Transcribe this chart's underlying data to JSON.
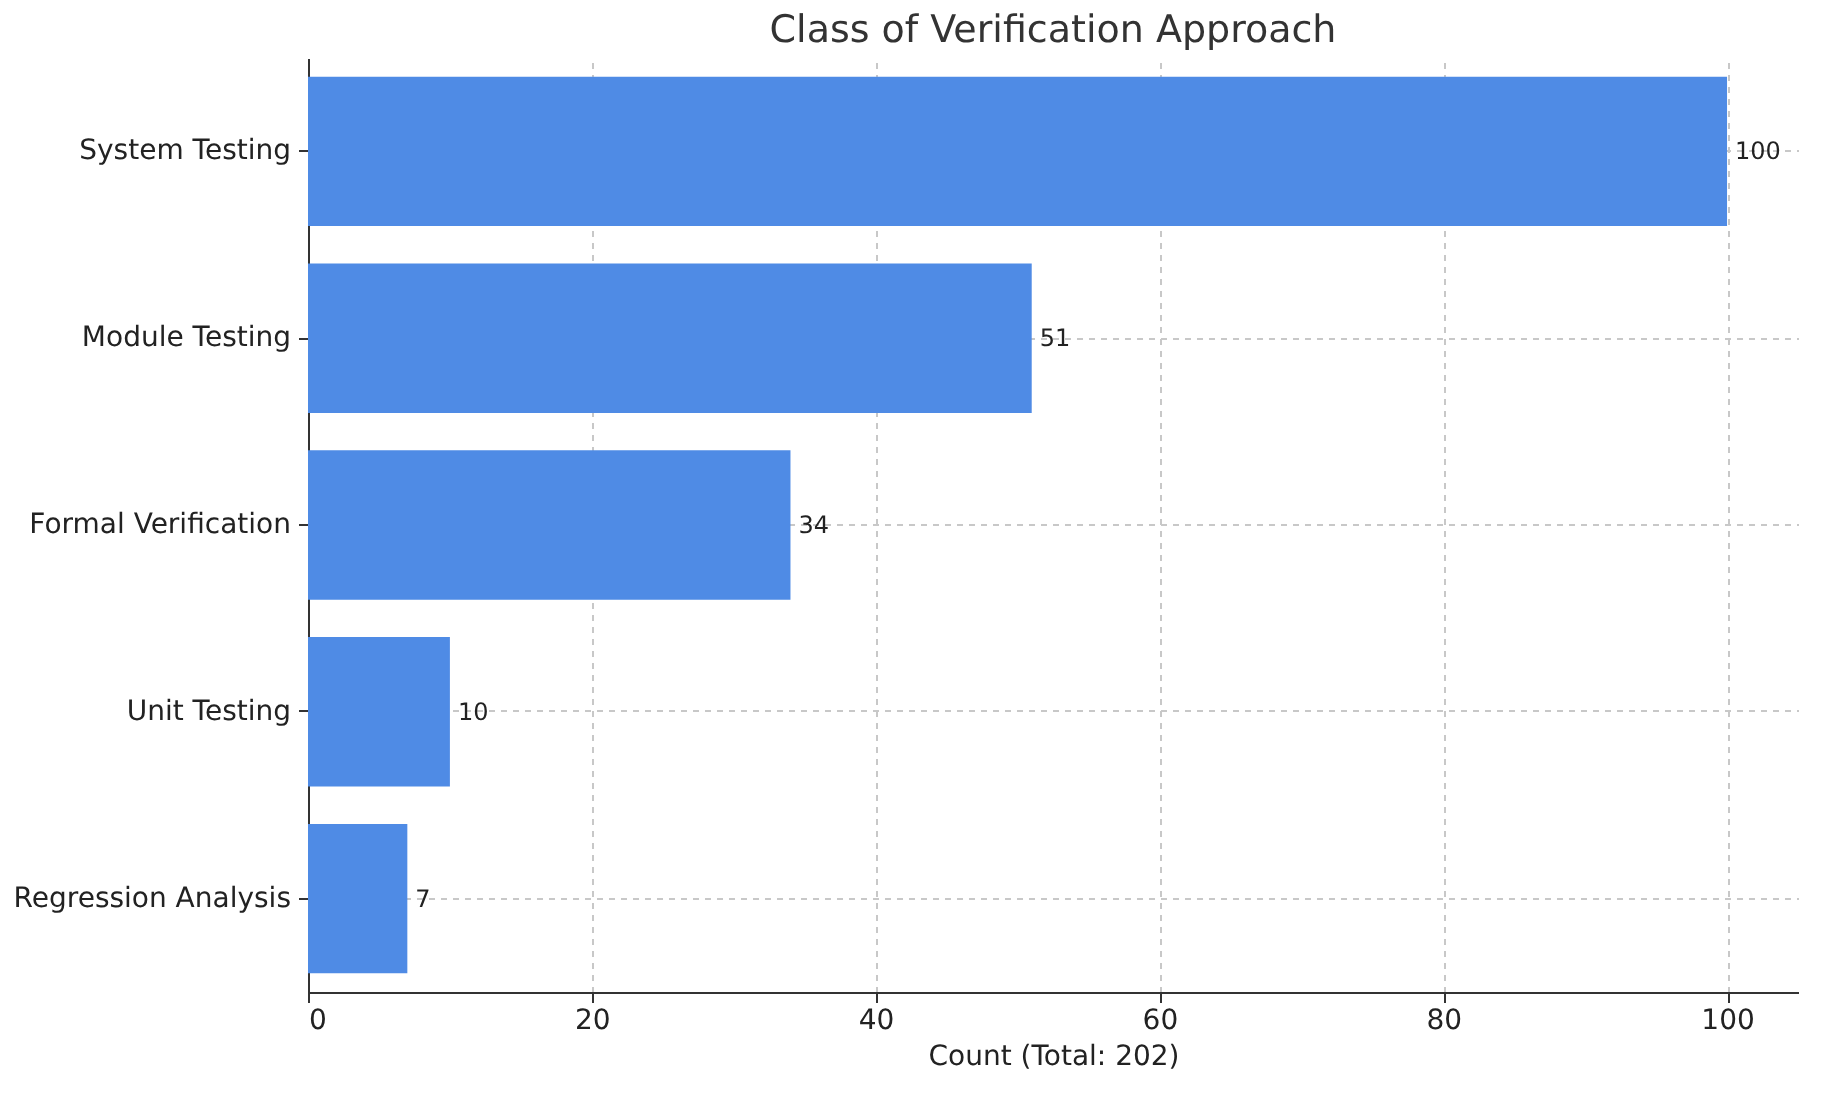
{
  "chart_data": {
    "type": "bar",
    "orientation": "horizontal",
    "title": "Class of Verification Approach",
    "xlabel": "Count (Total: 202)",
    "categories": [
      "System Testing",
      "Module Testing",
      "Formal Verification",
      "Unit Testing",
      "Regression Analysis"
    ],
    "values": [
      100,
      51,
      34,
      10,
      7
    ],
    "color": "#4f8be5",
    "xlim": [
      0,
      105
    ],
    "xticks": [
      0,
      20,
      40,
      60,
      80,
      100
    ],
    "grid": true,
    "data_labels": true
  }
}
